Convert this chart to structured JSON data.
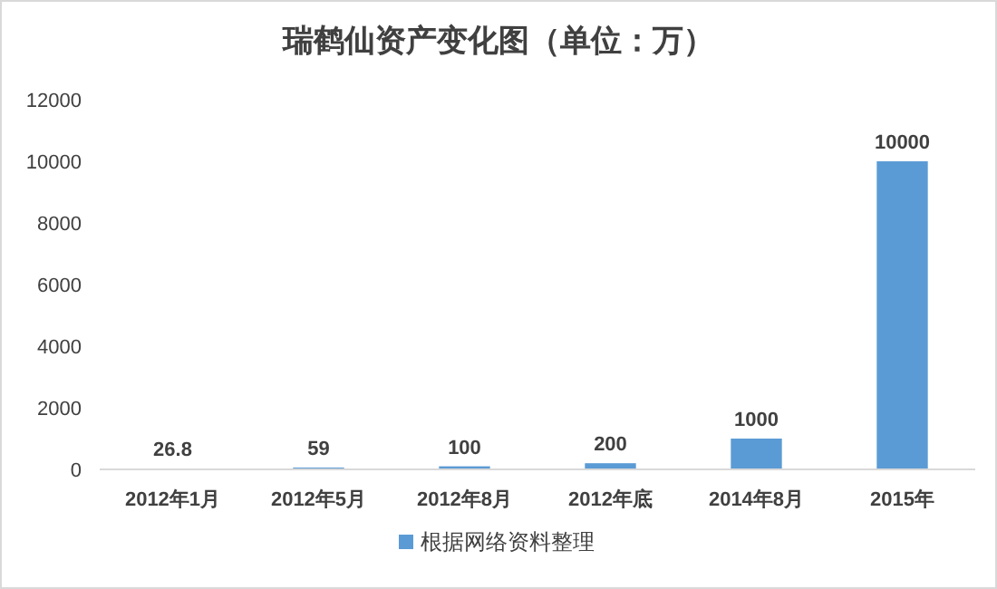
{
  "chart_data": {
    "type": "bar",
    "title": "瑞鹤仙资产变化图（单位：万）",
    "categories": [
      "2012年1月",
      "2012年5月",
      "2012年8月",
      "2012年底",
      "2014年8月",
      "2015年"
    ],
    "series": [
      {
        "name": "根据网络资料整理",
        "color": "#5b9bd5",
        "values": [
          26.8,
          59,
          100,
          200,
          1000,
          10000
        ]
      }
    ],
    "ylim": [
      0,
      12000
    ],
    "yticks": [
      0,
      2000,
      4000,
      6000,
      8000,
      10000,
      12000
    ],
    "data_labels": true,
    "legend": "bottom",
    "grid": false
  }
}
